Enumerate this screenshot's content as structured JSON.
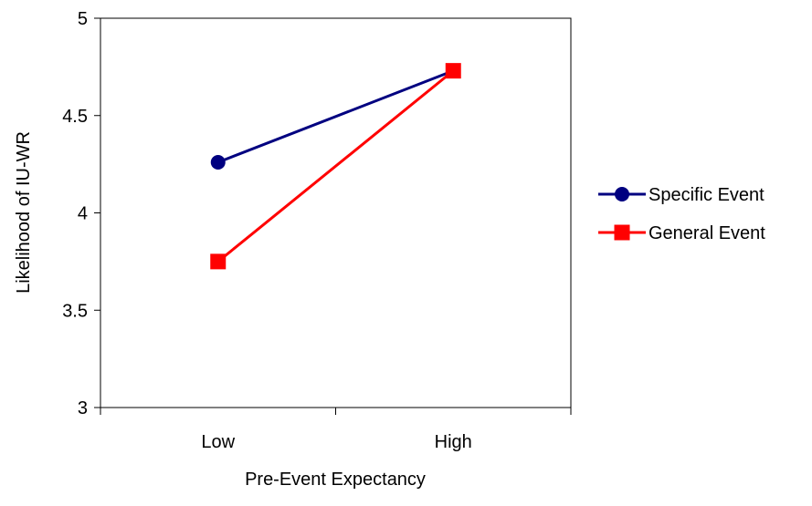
{
  "chart_data": {
    "type": "line",
    "categories": [
      "Low",
      "High"
    ],
    "series": [
      {
        "name": "Specific Event",
        "values": [
          4.26,
          4.73
        ],
        "color": "#000080",
        "marker": "circle"
      },
      {
        "name": "General Event",
        "values": [
          3.75,
          4.73
        ],
        "color": "#ff0000",
        "marker": "square"
      }
    ],
    "xlabel": "Pre-Event Expectancy",
    "ylabel": "Likelihood of IU-WR",
    "ylim": [
      3,
      5
    ],
    "yticks": [
      "3",
      "3.5",
      "4",
      "4.5",
      "5"
    ],
    "grid": false,
    "legend_position": "right"
  }
}
